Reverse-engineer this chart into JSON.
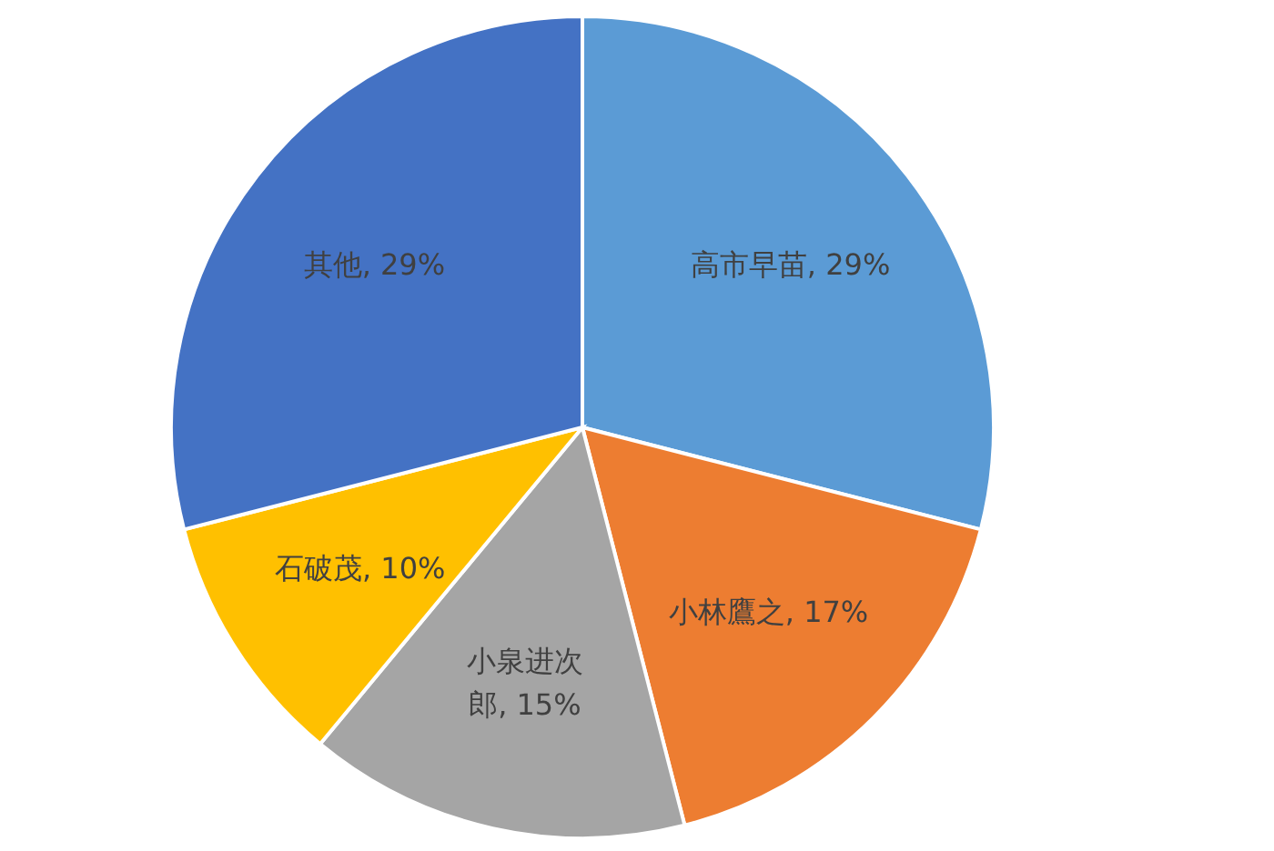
{
  "chart_data": {
    "type": "pie",
    "categories": [
      "高市早苗",
      "小林鷹之",
      "小泉进次郎",
      "石破茂",
      "其他"
    ],
    "values": [
      29,
      17,
      15,
      10,
      29
    ],
    "value_labels": [
      "29%",
      "17%",
      "15%",
      "10%",
      "29%"
    ],
    "colors": [
      "#5b9bd5",
      "#ed7d31",
      "#a5a5a5",
      "#ffc000",
      "#4472c4"
    ]
  }
}
